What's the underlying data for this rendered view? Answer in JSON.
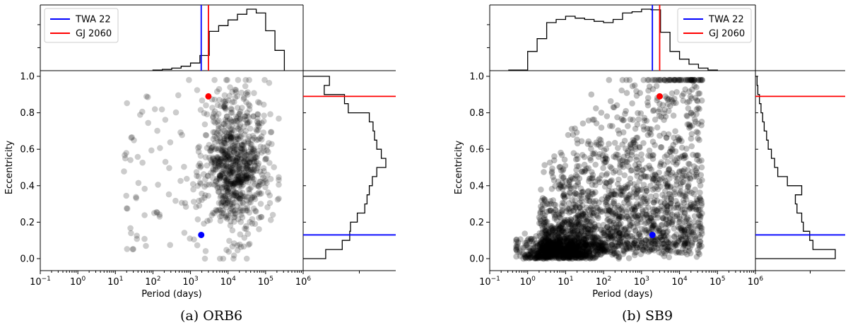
{
  "chart_data": [
    {
      "type": "scatter",
      "caption": "(a) ORB6",
      "xlabel": "Period (days)",
      "ylabel": "Eccentricity",
      "xscale": "log",
      "xlim": [
        0.1,
        1000000
      ],
      "ylim": [
        0,
        1
      ],
      "x_ticks": [
        "10",
        "10",
        "10",
        "10",
        "10",
        "10",
        "10",
        "10"
      ],
      "x_tick_exponents": [
        "−1",
        "0",
        "1",
        "2",
        "3",
        "4",
        "5",
        "6"
      ],
      "y_ticks": [
        "0.0",
        "0.2",
        "0.4",
        "0.6",
        "0.8",
        "1.0"
      ],
      "legend": {
        "placement": "top-left (period histogram)",
        "entries": [
          {
            "name": "TWA 22",
            "color": "#0000ff"
          },
          {
            "name": "GJ 2060",
            "color": "#ff0000"
          }
        ]
      },
      "highlight_points": [
        {
          "name": "TWA 22",
          "period": 1930,
          "e": 0.13,
          "color": "#0000ff"
        },
        {
          "name": "GJ 2060",
          "period": 3000,
          "e": 0.89,
          "color": "#ff0000"
        }
      ],
      "marker_lines": {
        "TWA 22": {
          "period": 1930,
          "e": 0.13
        },
        "GJ 2060": {
          "period": 3000,
          "e": 0.89
        }
      },
      "period_histogram": {
        "log_bin_edges": [
          2.0,
          2.25,
          2.5,
          2.75,
          3.0,
          3.25,
          3.5,
          3.75,
          4.0,
          4.25,
          4.5,
          4.75,
          5.0,
          5.25,
          5.5
        ],
        "counts": [
          1,
          2,
          4,
          7,
          12,
          24,
          62,
          71,
          80,
          89,
          97,
          91,
          63,
          32
        ]
      },
      "ecc_histogram": {
        "bin_edges": [
          0.0,
          0.05,
          0.1,
          0.15,
          0.2,
          0.25,
          0.3,
          0.35,
          0.4,
          0.45,
          0.5,
          0.55,
          0.6,
          0.65,
          0.7,
          0.75,
          0.8,
          0.85,
          0.9,
          0.95,
          1.0
        ],
        "counts": [
          30,
          52,
          62,
          63,
          72,
          82,
          85,
          88,
          92,
          98,
          110,
          104,
          98,
          95,
          93,
          88,
          60,
          55,
          28,
          35
        ]
      },
      "scatter_series": {
        "color": "#000000",
        "alpha": 0.2,
        "n_cloud": 850
      }
    },
    {
      "type": "scatter",
      "caption": "(b) SB9",
      "xlabel": "Period (days)",
      "ylabel": "Eccentricity",
      "xscale": "log",
      "xlim": [
        0.1,
        1000000
      ],
      "ylim": [
        0,
        1
      ],
      "x_ticks": [
        "10",
        "10",
        "10",
        "10",
        "10",
        "10",
        "10",
        "10"
      ],
      "x_tick_exponents": [
        "−1",
        "0",
        "1",
        "2",
        "3",
        "4",
        "5",
        "6"
      ],
      "y_ticks": [
        "0.0",
        "0.2",
        "0.4",
        "0.6",
        "0.8",
        "1.0"
      ],
      "legend": {
        "placement": "top-right (period histogram)",
        "entries": [
          {
            "name": "TWA 22",
            "color": "#0000ff"
          },
          {
            "name": "GJ 2060",
            "color": "#ff0000"
          }
        ]
      },
      "highlight_points": [
        {
          "name": "TWA 22",
          "period": 1930,
          "e": 0.13,
          "color": "#0000ff"
        },
        {
          "name": "GJ 2060",
          "period": 3000,
          "e": 0.89,
          "color": "#ff0000"
        }
      ],
      "marker_lines": {
        "TWA 22": {
          "period": 1930,
          "e": 0.13
        },
        "GJ 2060": {
          "period": 3000,
          "e": 0.89
        }
      },
      "period_histogram": {
        "log_bin_edges": [
          -0.5,
          0.0,
          0.25,
          0.5,
          0.75,
          1.0,
          1.25,
          1.5,
          1.75,
          2.0,
          2.25,
          2.5,
          2.75,
          3.0,
          3.25,
          3.5,
          3.75,
          4.0,
          4.25,
          4.5,
          4.75,
          5.0
        ],
        "counts": [
          1,
          30,
          50,
          75,
          80,
          85,
          82,
          80,
          77,
          75,
          80,
          90,
          92,
          96,
          95,
          60,
          30,
          18,
          10,
          4,
          1
        ]
      },
      "ecc_histogram": {
        "bin_edges": [
          0.0,
          0.05,
          0.1,
          0.15,
          0.2,
          0.25,
          0.3,
          0.35,
          0.4,
          0.45,
          0.5,
          0.55,
          0.6,
          0.65,
          0.7,
          0.75,
          0.8,
          0.85,
          0.9,
          0.95,
          1.0
        ],
        "counts": [
          100,
          72,
          68,
          60,
          58,
          52,
          50,
          58,
          40,
          28,
          24,
          20,
          16,
          14,
          11,
          9,
          7,
          5,
          3,
          2
        ]
      },
      "scatter_series": {
        "color": "#000000",
        "alpha": 0.25,
        "n_short": 700,
        "n_cloud": 1850
      }
    }
  ]
}
